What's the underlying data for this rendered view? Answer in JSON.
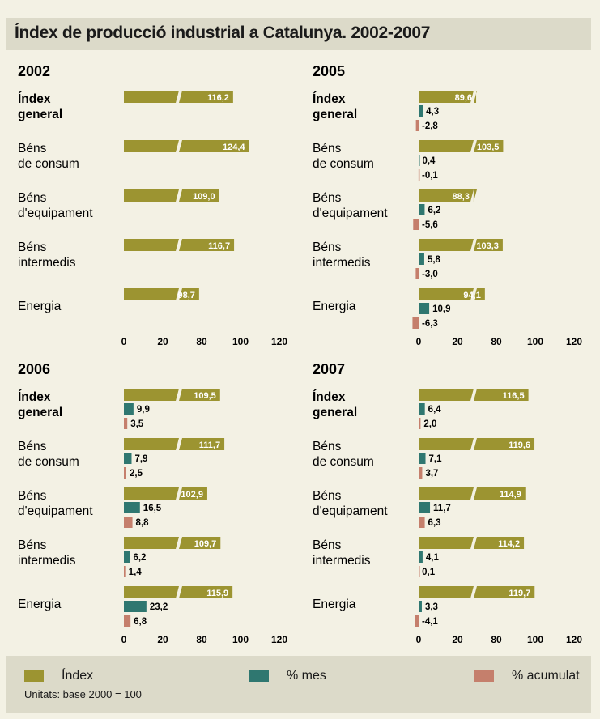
{
  "title": "Índex de producció industrial a Catalunya. 2002-2007",
  "legend": [
    {
      "label": "Índex",
      "color": "#9c9431"
    },
    {
      "label": "% mes",
      "color": "#2f7770"
    },
    {
      "label": "% acumulat",
      "color": "#c57f6c"
    }
  ],
  "units_note": "Unitats: base 2000 = 100",
  "chart_data": [
    {
      "type": "bar",
      "title": "2002",
      "categories": [
        "Índex general",
        "Béns de consum",
        "Béns d'equipament",
        "Béns intermedis",
        "Energia"
      ],
      "series": [
        {
          "name": "Índex",
          "values": [
            116.2,
            124.4,
            109.0,
            116.7,
            98.7
          ],
          "labels": [
            "116,2",
            "124,4",
            "109,0",
            "116,7",
            "98,7"
          ]
        }
      ],
      "axis_ticks": [
        "0",
        "20",
        "80",
        "100",
        "120"
      ],
      "xlim": [
        0,
        120
      ],
      "axis_break": [
        20,
        80
      ]
    },
    {
      "type": "bar",
      "title": "2005",
      "categories": [
        "Índex general",
        "Béns de consum",
        "Béns d'equipament",
        "Béns intermedis",
        "Energia"
      ],
      "series": [
        {
          "name": "Índex",
          "values": [
            89.6,
            103.5,
            88.3,
            103.3,
            94.1
          ],
          "labels": [
            "89,6",
            "103,5",
            "88,3",
            "103,3",
            "94,1"
          ]
        },
        {
          "name": "% mes",
          "values": [
            4.3,
            0.4,
            6.2,
            5.8,
            10.9
          ],
          "labels": [
            "4,3",
            "0,4",
            "6,2",
            "5,8",
            "10,9"
          ]
        },
        {
          "name": "% acumulat",
          "values": [
            -2.8,
            -0.1,
            -5.6,
            -3.0,
            -6.3
          ],
          "labels": [
            "-2,8",
            "-0,1",
            "-5,6",
            "-3,0",
            "-6,3"
          ]
        }
      ],
      "axis_ticks": [
        "0",
        "20",
        "80",
        "100",
        "120"
      ],
      "xlim": [
        0,
        120
      ],
      "axis_break": [
        20,
        80
      ]
    },
    {
      "type": "bar",
      "title": "2006",
      "categories": [
        "Índex general",
        "Béns de consum",
        "Béns d'equipament",
        "Béns intermedis",
        "Energia"
      ],
      "series": [
        {
          "name": "Índex",
          "values": [
            109.5,
            111.7,
            102.9,
            109.7,
            115.9
          ],
          "labels": [
            "109,5",
            "111,7",
            "102,9",
            "109,7",
            "115,9"
          ]
        },
        {
          "name": "% mes",
          "values": [
            9.9,
            7.9,
            16.5,
            6.2,
            23.2
          ],
          "labels": [
            "9,9",
            "7,9",
            "16,5",
            "6,2",
            "23,2"
          ]
        },
        {
          "name": "% acumulat",
          "values": [
            3.5,
            2.5,
            8.8,
            1.4,
            6.8
          ],
          "labels": [
            "3,5",
            "2,5",
            "8,8",
            "1,4",
            "6,8"
          ]
        }
      ],
      "axis_ticks": [
        "0",
        "20",
        "80",
        "100",
        "120"
      ],
      "xlim": [
        0,
        120
      ],
      "axis_break": [
        20,
        80
      ]
    },
    {
      "type": "bar",
      "title": "2007",
      "categories": [
        "Índex general",
        "Béns de consum",
        "Béns d'equipament",
        "Béns intermedis",
        "Energia"
      ],
      "series": [
        {
          "name": "Índex",
          "values": [
            116.5,
            119.6,
            114.9,
            114.2,
            119.7
          ],
          "labels": [
            "116,5",
            "119,6",
            "114,9",
            "114,2",
            "119,7"
          ]
        },
        {
          "name": "% mes",
          "values": [
            6.4,
            7.1,
            11.7,
            4.1,
            3.3
          ],
          "labels": [
            "6,4",
            "7,1",
            "11,7",
            "4,1",
            "3,3"
          ]
        },
        {
          "name": "% acumulat",
          "values": [
            2.0,
            3.7,
            6.3,
            0.1,
            -4.1
          ],
          "labels": [
            "2,0",
            "3,7",
            "6,3",
            "0,1",
            "-4,1"
          ]
        }
      ],
      "axis_ticks": [
        "0",
        "20",
        "80",
        "100",
        "120"
      ],
      "xlim": [
        0,
        120
      ],
      "axis_break": [
        20,
        80
      ]
    }
  ]
}
